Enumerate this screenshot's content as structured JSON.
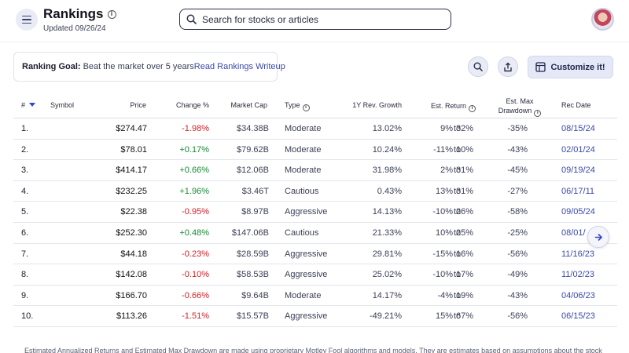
{
  "header": {
    "title": "Rankings",
    "updated": "Updated 09/26/24",
    "search_placeholder": "Search for stocks or articles"
  },
  "goal": {
    "label": "Ranking Goal:",
    "value": "Beat the market over 5 years",
    "link": "Read Rankings Writeup"
  },
  "toolbar": {
    "customize_label": "Customize it!"
  },
  "table": {
    "headers": {
      "rank": "#",
      "symbol": "Symbol",
      "price": "Price",
      "change": "Change %",
      "market_cap": "Market Cap",
      "type": "Type",
      "growth": "1Y Rev. Growth",
      "est_return": "Est. Return",
      "drawdown_1": "Est. Max",
      "drawdown_2": "Drawdown",
      "rec_date": "Rec Date"
    },
    "rows": [
      {
        "rank": "1.",
        "price": "$274.47",
        "change": "-1.98%",
        "dir": "neg",
        "mcap": "$34.38B",
        "type": "Moderate",
        "growth": "13.02%",
        "ret_lo": "9%",
        "ret_to": "to",
        "ret_hi": "32%",
        "dd": "-35%",
        "date": "08/15/24"
      },
      {
        "rank": "2.",
        "price": "$78.01",
        "change": "+0.17%",
        "dir": "pos",
        "mcap": "$79.62B",
        "type": "Moderate",
        "growth": "10.24%",
        "ret_lo": "-11%",
        "ret_to": "to",
        "ret_hi": "10%",
        "dd": "-43%",
        "date": "02/01/24"
      },
      {
        "rank": "3.",
        "price": "$414.17",
        "change": "+0.66%",
        "dir": "pos",
        "mcap": "$12.06B",
        "type": "Moderate",
        "growth": "31.98%",
        "ret_lo": "2%",
        "ret_to": "to",
        "ret_hi": "31%",
        "dd": "-45%",
        "date": "09/19/24"
      },
      {
        "rank": "4.",
        "price": "$232.25",
        "change": "+1.96%",
        "dir": "pos",
        "mcap": "$3.46T",
        "type": "Cautious",
        "growth": "0.43%",
        "ret_lo": "13%",
        "ret_to": "to",
        "ret_hi": "31%",
        "dd": "-27%",
        "date": "06/17/11"
      },
      {
        "rank": "5.",
        "price": "$22.38",
        "change": "-0.95%",
        "dir": "neg",
        "mcap": "$8.97B",
        "type": "Aggressive",
        "growth": "14.13%",
        "ret_lo": "-10%",
        "ret_to": "to",
        "ret_hi": "26%",
        "dd": "-58%",
        "date": "09/05/24"
      },
      {
        "rank": "6.",
        "price": "$252.30",
        "change": "+0.48%",
        "dir": "pos",
        "mcap": "$147.06B",
        "type": "Cautious",
        "growth": "21.33%",
        "ret_lo": "10%",
        "ret_to": "to",
        "ret_hi": "25%",
        "dd": "-25%",
        "date": "08/01/"
      },
      {
        "rank": "7.",
        "price": "$44.18",
        "change": "-0.23%",
        "dir": "neg",
        "mcap": "$28.59B",
        "type": "Aggressive",
        "growth": "29.81%",
        "ret_lo": "-15%",
        "ret_to": "to",
        "ret_hi": "16%",
        "dd": "-56%",
        "date": "11/16/23"
      },
      {
        "rank": "8.",
        "price": "$142.08",
        "change": "-0.10%",
        "dir": "neg",
        "mcap": "$58.53B",
        "type": "Aggressive",
        "growth": "25.02%",
        "ret_lo": "-10%",
        "ret_to": "to",
        "ret_hi": "17%",
        "dd": "-49%",
        "date": "11/02/23"
      },
      {
        "rank": "9.",
        "price": "$166.70",
        "change": "-0.66%",
        "dir": "neg",
        "mcap": "$9.64B",
        "type": "Moderate",
        "growth": "14.17%",
        "ret_lo": "-4%",
        "ret_to": "to",
        "ret_hi": "19%",
        "dd": "-43%",
        "date": "04/06/23"
      },
      {
        "rank": "10.",
        "price": "$113.26",
        "change": "-1.51%",
        "dir": "neg",
        "mcap": "$15.57B",
        "type": "Aggressive",
        "growth": "-49.21%",
        "ret_lo": "15%",
        "ret_to": "to",
        "ret_hi": "67%",
        "dd": "-56%",
        "date": "06/15/23"
      }
    ]
  },
  "footnote": "Estimated Annualized Returns and Estimated Max Drawdown are made using proprietary Motley Fool algorithms and models. They are estimates based on assumptions about the stock",
  "colors": {
    "positive": "#168a34",
    "negative": "#d32028",
    "link": "#3949ab",
    "accent": "#2e47c7"
  },
  "icons": {
    "menu": "hamburger-icon",
    "search": "search-icon",
    "share": "share-icon",
    "customize": "table-grid-icon",
    "scroll": "chevron-right-icon",
    "info": "info-icon",
    "sort": "sort-down-icon"
  }
}
